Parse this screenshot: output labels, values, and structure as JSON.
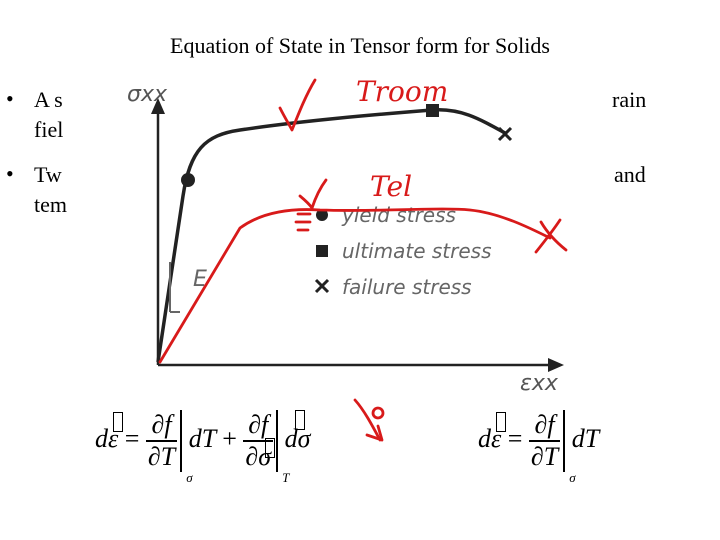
{
  "slide": {
    "title": "Equation of State in Tensor form for Solids",
    "bullet_glyph": "•",
    "bullets": [
      {
        "start": "A s",
        "line2": "fiel",
        "end": "rain"
      },
      {
        "start": "Tw",
        "line2": "tem",
        "end": "and"
      }
    ]
  },
  "figure": {
    "y_axis_label": "σxx",
    "x_axis_label": "εxx",
    "elastic_label": "E",
    "legend": [
      "yield stress",
      "ultimate stress",
      "failure stress"
    ],
    "annotations_handwritten": [
      "Troom",
      "Tel",
      "0"
    ]
  },
  "equations": {
    "left": {
      "d": "d",
      "eps": "ε",
      "eq": "=",
      "df": "∂f",
      "dT": "∂T",
      "dTvar": "dT",
      "plus": "+",
      "dsigma": "∂σ",
      "dsig": "dσ",
      "sub_sigma": "σ",
      "sub_T": "T"
    },
    "right": {
      "d": "d",
      "eps": "ε",
      "eq": "=",
      "df": "∂f",
      "dT": "∂T",
      "dTvar": "dT",
      "sub_sigma": "σ"
    }
  },
  "colors": {
    "ink": "#000000",
    "marker_red": "#d81a1a",
    "curve_dark": "#222222",
    "legend_grey": "#555555"
  }
}
